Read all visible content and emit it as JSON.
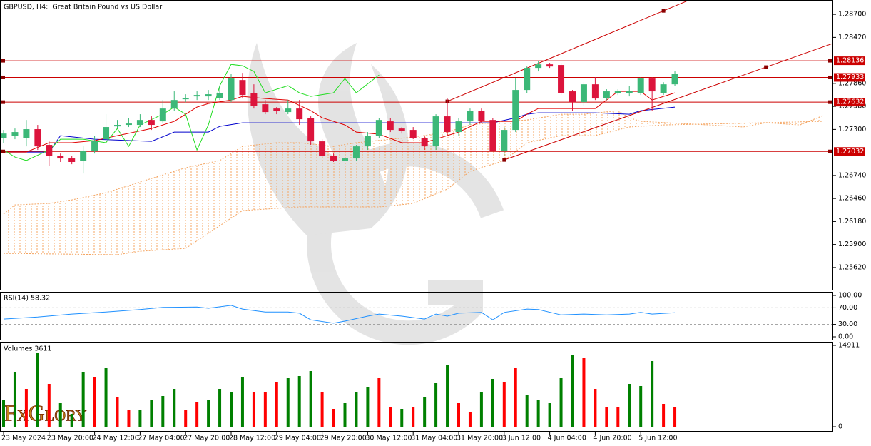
{
  "chart_data": [
    {
      "type": "candlestick",
      "title": "GBPUSD, H4:  Great Britain Pound vs US Dollar",
      "categories": [
        "23 May 2024",
        null,
        null,
        null,
        "23 May 20:00",
        null,
        null,
        null,
        "24 May 12:00",
        null,
        null,
        null,
        "27 May 04:00",
        null,
        null,
        null,
        "27 May 20:00",
        null,
        null,
        null,
        "28 May 12:00",
        null,
        null,
        null,
        "29 May 04:00",
        null,
        null,
        null,
        "29 May 20:00",
        null,
        null,
        null,
        "30 May 12:00",
        null,
        null,
        null,
        "31 May 04:00",
        null,
        null,
        null,
        "31 May 20:00",
        null,
        null,
        null,
        "3 Jun 12:00",
        null,
        null,
        null,
        "4 Jun 04:00",
        null,
        null,
        null,
        "4 Jun 20:00",
        null,
        null,
        null,
        "5 Jun 12:00",
        null,
        null,
        null
      ],
      "ohlc": [
        [
          1.27198,
          1.27294,
          1.27138,
          1.2725
        ],
        [
          1.27224,
          1.27311,
          1.27181,
          1.27268
        ],
        [
          1.27198,
          1.27415,
          1.27094,
          1.27303
        ],
        [
          1.27303,
          1.27355,
          1.27051,
          1.27094
        ],
        [
          1.27112,
          1.27155,
          1.2686,
          1.26981
        ],
        [
          1.26981,
          1.27007,
          1.26904,
          1.26947
        ],
        [
          1.26947,
          1.26981,
          1.26877,
          1.26904
        ],
        [
          1.26921,
          1.27094,
          1.26764,
          1.27034
        ],
        [
          1.27034,
          1.27224,
          1.27007,
          1.27164
        ],
        [
          1.27181,
          1.27485,
          1.27155,
          1.27329
        ],
        [
          1.27337,
          1.27415,
          1.27311,
          1.27355
        ],
        [
          1.27355,
          1.27441,
          1.27329,
          1.27372
        ],
        [
          1.27355,
          1.27485,
          1.27329,
          1.27415
        ],
        [
          1.27415,
          1.27459,
          1.27294,
          1.27355
        ],
        [
          1.27398,
          1.27658,
          1.27372,
          1.27554
        ],
        [
          1.27554,
          1.27763,
          1.27528,
          1.27658
        ],
        [
          1.27667,
          1.27728,
          1.27632,
          1.27684
        ],
        [
          1.27702,
          1.27763,
          1.27658,
          1.27719
        ],
        [
          1.27702,
          1.2778,
          1.27658,
          1.27728
        ],
        [
          1.27684,
          1.27832,
          1.27658,
          1.27745
        ],
        [
          1.27658,
          1.2798,
          1.27632,
          1.27919
        ],
        [
          1.27901,
          1.27988,
          1.27676,
          1.27719
        ],
        [
          1.27745,
          1.27849,
          1.27554,
          1.27589
        ],
        [
          1.27606,
          1.27658,
          1.27485,
          1.27511
        ],
        [
          1.27554,
          1.27572,
          1.27485,
          1.27528
        ],
        [
          1.27511,
          1.27658,
          1.27485,
          1.27554
        ],
        [
          1.27554,
          1.27658,
          1.27355,
          1.27424
        ],
        [
          1.27441,
          1.27459,
          1.27112,
          1.27155
        ],
        [
          1.27155,
          1.27181,
          1.26964,
          1.26981
        ],
        [
          1.26981,
          1.27007,
          1.26904,
          1.26921
        ],
        [
          1.26921,
          1.27007,
          1.26904,
          1.26947
        ],
        [
          1.26947,
          1.27112,
          1.26921,
          1.27094
        ],
        [
          1.27094,
          1.27268,
          1.27051,
          1.27224
        ],
        [
          1.27224,
          1.27441,
          1.27198,
          1.27415
        ],
        [
          1.27398,
          1.27441,
          1.27268,
          1.27294
        ],
        [
          1.27311,
          1.27329,
          1.2725,
          1.27285
        ],
        [
          1.27294,
          1.27329,
          1.27181,
          1.27198
        ],
        [
          1.27198,
          1.27224,
          1.27051,
          1.27094
        ],
        [
          1.27094,
          1.27485,
          1.27051,
          1.27459
        ],
        [
          1.27459,
          1.27676,
          1.27224,
          1.27268
        ],
        [
          1.27268,
          1.27441,
          1.27224,
          1.27398
        ],
        [
          1.27398,
          1.27554,
          1.27355,
          1.27528
        ],
        [
          1.27528,
          1.27554,
          1.27372,
          1.27398
        ],
        [
          1.27415,
          1.27441,
          1.27034,
          1.27034
        ],
        [
          1.27034,
          1.27329,
          1.26981,
          1.27294
        ],
        [
          1.27294,
          1.27919,
          1.27268,
          1.2778
        ],
        [
          1.2778,
          1.28066,
          1.27745,
          1.28049
        ],
        [
          1.28049,
          1.28136,
          1.28006,
          1.28092
        ],
        [
          1.28092,
          1.2811,
          1.28049,
          1.28066
        ],
        [
          1.28084,
          1.2811,
          1.27719,
          1.27745
        ],
        [
          1.27763,
          1.2778,
          1.27528,
          1.27632
        ],
        [
          1.27632,
          1.27875,
          1.27589,
          1.27849
        ],
        [
          1.27849,
          1.27936,
          1.27658,
          1.27676
        ],
        [
          1.27684,
          1.27789,
          1.27658,
          1.27763
        ],
        [
          1.27745,
          1.27789,
          1.27719,
          1.27763
        ],
        [
          1.27745,
          1.27832,
          1.27702,
          1.27763
        ],
        [
          1.27745,
          1.27936,
          1.27719,
          1.27919
        ],
        [
          1.27919,
          1.27936,
          1.27528,
          1.27763
        ],
        [
          1.27745,
          1.27875,
          1.27719,
          1.27849
        ],
        [
          1.27849,
          1.28006,
          1.27832,
          1.2798
        ]
      ],
      "up_color": "#3cb878",
      "down_color": "#dc143c",
      "ylim": [
        1.2535,
        1.2884
      ],
      "yticks": [
        {
          "value": 1.287,
          "label": "1.28700"
        },
        {
          "value": 1.2842,
          "label": "1.28420"
        },
        {
          "value": 1.2786,
          "label": "1.27860"
        },
        {
          "value": 1.2758,
          "label": "1.27580"
        },
        {
          "value": 1.273,
          "label": "1.27300"
        },
        {
          "value": 1.2674,
          "label": "1.26740"
        },
        {
          "value": 1.2646,
          "label": "1.26460"
        },
        {
          "value": 1.2618,
          "label": "1.26180"
        },
        {
          "value": 1.259,
          "label": "1.25900"
        },
        {
          "value": 1.2562,
          "label": "1.25620"
        }
      ],
      "levels": {
        "color": "#cc0000",
        "values": [
          1.28136,
          1.27933,
          1.27632,
          1.27032
        ]
      },
      "trendlines": {
        "color": "#cc0000",
        "lines": [
          [
            [
              39,
              1.27641
            ],
            [
              58,
              1.28743
            ]
          ],
          [
            [
              44,
              1.26929
            ],
            [
              67,
              1.28058
            ]
          ]
        ]
      },
      "indicators": [
        {
          "color": "#0000cc",
          "x": [
            0,
            4,
            5,
            8,
            13,
            15,
            18,
            19,
            21,
            43,
            45,
            46,
            47,
            52,
            55,
            56,
            59
          ],
          "values": [
            1.27025,
            1.27025,
            1.27224,
            1.27181,
            1.27155,
            1.27268,
            1.27268,
            1.27337,
            1.27381,
            1.27381,
            1.27441,
            1.27485,
            1.27502,
            1.27502,
            1.27485,
            1.27528,
            1.27572
          ]
        },
        {
          "color": "#e00000",
          "x": [
            0,
            2,
            4,
            6,
            8,
            10,
            13,
            15,
            17,
            18,
            20,
            21,
            23,
            25,
            27,
            28,
            30,
            31,
            33,
            35,
            37,
            40,
            42,
            45,
            46,
            47,
            52,
            54,
            56,
            57,
            59
          ],
          "values": [
            1.27025,
            1.27025,
            1.27138,
            1.27138,
            1.27164,
            1.27224,
            1.27311,
            1.27398,
            1.27572,
            1.27615,
            1.27658,
            1.27702,
            1.27676,
            1.27658,
            1.27528,
            1.27441,
            1.27355,
            1.27268,
            1.27242,
            1.27138,
            1.27138,
            1.27268,
            1.27398,
            1.27398,
            1.27485,
            1.27554,
            1.27554,
            1.27763,
            1.27763,
            1.27658,
            1.27745
          ]
        },
        {
          "color": "#22dd22",
          "x": [
            0,
            1,
            2,
            4,
            5,
            7,
            9,
            10,
            11,
            12,
            14,
            15,
            16,
            17,
            18,
            19,
            20,
            21,
            22,
            23,
            25,
            26,
            27,
            29,
            30,
            31,
            33
          ],
          "values": [
            1.27051,
            1.26964,
            1.26921,
            1.27051,
            1.27181,
            1.27181,
            1.27138,
            1.27311,
            1.27094,
            1.27355,
            1.27485,
            1.27572,
            1.27485,
            1.27051,
            1.27355,
            1.27832,
            1.28092,
            1.28075,
            1.28006,
            1.27745,
            1.27832,
            1.27745,
            1.27702,
            1.27745,
            1.27919,
            1.27745,
            1.27962
          ]
        }
      ],
      "cloud": {
        "color": "#f4a460",
        "x_a": [
          0,
          1,
          4,
          6,
          9,
          11,
          14,
          16,
          19,
          21,
          24,
          26,
          29,
          31,
          34,
          36,
          39,
          41,
          44,
          46,
          49,
          51,
          54,
          55,
          56,
          62,
          65,
          67,
          70,
          72
        ],
        "span_a": [
          1.2627,
          1.26382,
          1.264,
          1.26443,
          1.2653,
          1.26617,
          1.26747,
          1.26834,
          1.26921,
          1.27094,
          1.27138,
          1.27138,
          1.27094,
          1.27138,
          1.27181,
          1.27207,
          1.27268,
          1.27355,
          1.27398,
          1.27415,
          1.27485,
          1.27485,
          1.27528,
          1.27441,
          1.27398,
          1.27355,
          1.27329,
          1.27381,
          1.27355,
          1.27467
        ],
        "x_b": [
          0,
          10,
          12,
          16,
          21,
          26,
          33,
          36,
          39,
          41,
          44,
          46,
          49,
          52,
          55,
          58,
          72
        ],
        "span_b": [
          1.25792,
          1.25775,
          1.25818,
          1.25853,
          1.26313,
          1.26357,
          1.26357,
          1.264,
          1.26574,
          1.2679,
          1.26921,
          1.27138,
          1.27224,
          1.27224,
          1.27329,
          1.27355,
          1.27398
        ]
      }
    },
    {
      "type": "line",
      "title": "RSI(14) 58.32",
      "color": "#1e90ff",
      "x": [
        0,
        3,
        6,
        9,
        12,
        14,
        17,
        18,
        20,
        21,
        23,
        25,
        26,
        27,
        29,
        30,
        32,
        33,
        35,
        37,
        38,
        39,
        40,
        42,
        43,
        44,
        46,
        47,
        49,
        51,
        53,
        55,
        56,
        57,
        59
      ],
      "values": [
        43,
        48,
        55,
        60,
        66,
        71,
        72,
        69,
        76,
        67,
        60,
        60,
        57,
        41,
        33,
        38,
        50,
        55,
        50,
        43,
        55,
        50,
        57,
        59,
        41,
        59,
        67,
        66,
        53,
        55,
        53,
        55,
        59,
        55,
        58.32
      ],
      "ylim": [
        0,
        100
      ],
      "yticks": [
        {
          "value": 100,
          "label": "100.00"
        },
        {
          "value": 70,
          "label": "70.00"
        },
        {
          "value": 30,
          "label": "30.00"
        },
        {
          "value": 0,
          "label": "0.00"
        }
      ],
      "levels": [
        70,
        30
      ]
    },
    {
      "type": "bar",
      "title": "Volumes 3611",
      "values": [
        4970,
        10072,
        6932,
        13603,
        7848,
        4316,
        2354,
        9941,
        9156,
        10726,
        5363,
        3008,
        3008,
        4840,
        5624,
        6932,
        3008,
        4578,
        4970,
        6932,
        6278,
        9156,
        6278,
        6409,
        8240,
        8894,
        9287,
        10202,
        6278,
        3270,
        4316,
        6278,
        7194,
        8894,
        3662,
        3270,
        3662,
        5494,
        7979,
        11249,
        4316,
        2747,
        6278,
        8764,
        8240,
        10726,
        5886,
        4840,
        4316,
        8894,
        13080,
        12557,
        6932,
        3662,
        3662,
        7848,
        7456,
        12034,
        4186,
        3611
      ],
      "colors": [
        "#008000",
        "#008000",
        "#ff0000",
        "#008000",
        "#ff0000",
        "#008000",
        "#008000",
        "#008000",
        "#ff0000",
        "#008000",
        "#ff0000",
        "#ff0000",
        "#008000",
        "#008000",
        "#008000",
        "#008000",
        "#ff0000",
        "#ff0000",
        "#008000",
        "#008000",
        "#008000",
        "#008000",
        "#ff0000",
        "#ff0000",
        "#ff0000",
        "#008000",
        "#008000",
        "#008000",
        "#ff0000",
        "#ff0000",
        "#008000",
        "#008000",
        "#008000",
        "#ff0000",
        "#ff0000",
        "#008000",
        "#ff0000",
        "#008000",
        "#008000",
        "#008000",
        "#ff0000",
        "#ff0000",
        "#008000",
        "#008000",
        "#ff0000",
        "#ff0000",
        "#008000",
        "#008000",
        "#008000",
        "#008000",
        "#008000",
        "#ff0000",
        "#ff0000",
        "#ff0000",
        "#ff0000",
        "#008000",
        "#008000",
        "#008000",
        "#ff0000",
        "#ff0000"
      ],
      "ylim": [
        0,
        14911
      ],
      "yticks": [
        14911,
        0
      ]
    }
  ],
  "logo": "FxGlory"
}
